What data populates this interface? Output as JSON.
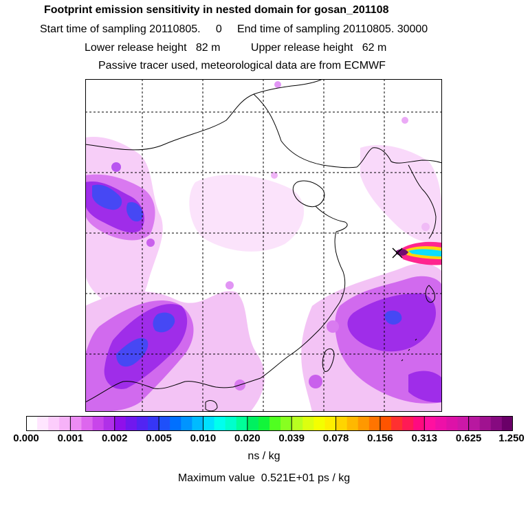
{
  "header": {
    "title": "Footprint emission sensitivity in nested domain for gosan_201108",
    "line2": "Start time of sampling 20110805.     0     End time of sampling 20110805. 30000",
    "line3": "Lower release height   82 m          Upper release height   62 m",
    "line4": "Passive tracer used, meteorological data are from ECMWF"
  },
  "colorbar": {
    "tick_labels": [
      "0.000",
      "0.001",
      "0.002",
      "0.005",
      "0.010",
      "0.020",
      "0.039",
      "0.078",
      "0.156",
      "0.313",
      "0.625",
      "1.250"
    ],
    "colors": [
      "#ffffff",
      "#ffe6ff",
      "#fccdfc",
      "#f6b2f8",
      "#ec8cf3",
      "#dd66ee",
      "#c845ea",
      "#b030e8",
      "#8f10ea",
      "#7018ee",
      "#5224f2",
      "#3636f6",
      "#1e50fa",
      "#0070ff",
      "#0094ff",
      "#00bbff",
      "#00e0ff",
      "#00ffee",
      "#00ffcc",
      "#00ff99",
      "#00f060",
      "#12f53a",
      "#50ff20",
      "#88ff20",
      "#b8ff20",
      "#dcff10",
      "#f4ff00",
      "#ffee00",
      "#ffd400",
      "#ffb800",
      "#ff9800",
      "#ff7400",
      "#ff5400",
      "#ff3030",
      "#ff1a55",
      "#ff0a80",
      "#ff10a0",
      "#ee10a8",
      "#dd12a8",
      "#cc18a8",
      "#b818a0",
      "#a01290",
      "#860a80",
      "#6a0068"
    ]
  },
  "units": "ns / kg",
  "max_value": "Maximum value  0.521E+01 ps / kg",
  "release_marker": "x-marker",
  "map_colors": {
    "coast": "#000000",
    "grid": "#000000",
    "light": "#f6c6f6",
    "mid": "#d56cf0",
    "purple": "#9a20e8",
    "blue": "#3a3cf4",
    "plume_hot": "#ff1a8a"
  }
}
